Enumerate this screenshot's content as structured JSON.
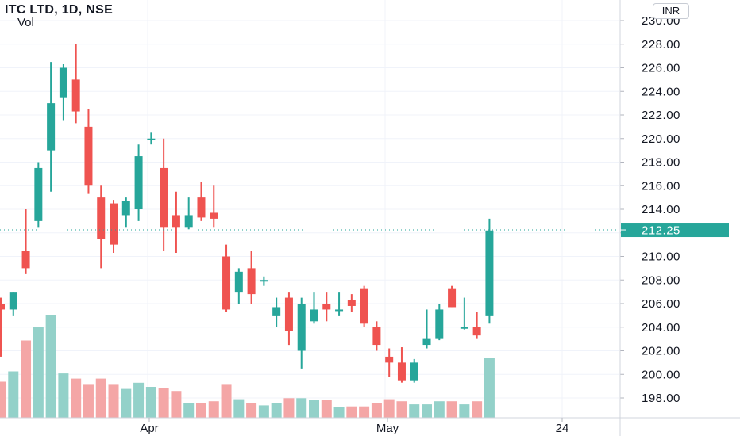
{
  "header": {
    "symbol_line": "ITC LTD, 1D, NSE",
    "volume_label": "Vol",
    "currency": "INR"
  },
  "chart_data": {
    "type": "candlestick",
    "price_axis": {
      "range": [
        196,
        231
      ],
      "ticks": [
        "198.00",
        "200.00",
        "202.00",
        "204.00",
        "206.00",
        "208.00",
        "210.00",
        "212.00",
        "214.00",
        "216.00",
        "218.00",
        "220.00",
        "222.00",
        "224.00",
        "226.00",
        "228.00",
        "230.00"
      ]
    },
    "time_axis": {
      "labels": [
        "Apr",
        "May",
        "24"
      ]
    },
    "last_price": {
      "value": 212.25,
      "label": "212.25",
      "color": "#26a69a"
    },
    "colors": {
      "up": "#26a69a",
      "down": "#ef5350",
      "vol_up": "#93d1c9",
      "vol_down": "#f4a6a6"
    },
    "candles": [
      {
        "o": 206.0,
        "h": 206.5,
        "l": 201.5,
        "c": 205.5,
        "v": 3.5
      },
      {
        "o": 205.5,
        "h": 207.0,
        "l": 205.0,
        "c": 207.0,
        "v": 4.5
      },
      {
        "o": 210.5,
        "h": 214.0,
        "l": 208.5,
        "c": 209.0,
        "v": 7.5
      },
      {
        "o": 213.0,
        "h": 218.0,
        "l": 212.5,
        "c": 217.5,
        "v": 8.8
      },
      {
        "o": 219.0,
        "h": 226.5,
        "l": 215.5,
        "c": 223.0,
        "v": 10.0
      },
      {
        "o": 223.5,
        "h": 226.3,
        "l": 221.5,
        "c": 226.0,
        "v": 4.3
      },
      {
        "o": 225.0,
        "h": 228.0,
        "l": 221.3,
        "c": 222.3,
        "v": 3.8
      },
      {
        "o": 221.0,
        "h": 222.5,
        "l": 215.3,
        "c": 216.0,
        "v": 3.2
      },
      {
        "o": 215.0,
        "h": 216.0,
        "l": 209.0,
        "c": 211.5,
        "v": 3.8
      },
      {
        "o": 214.5,
        "h": 214.8,
        "l": 210.3,
        "c": 211.0,
        "v": 3.2
      },
      {
        "o": 213.5,
        "h": 215.0,
        "l": 212.5,
        "c": 214.7,
        "v": 2.8
      },
      {
        "o": 214.0,
        "h": 219.5,
        "l": 213.0,
        "c": 218.5,
        "v": 3.4
      },
      {
        "o": 220.0,
        "h": 220.5,
        "l": 219.5,
        "c": 220.0,
        "v": 3.0
      },
      {
        "o": 217.5,
        "h": 220.0,
        "l": 210.5,
        "c": 212.5,
        "v": 2.9
      },
      {
        "o": 213.5,
        "h": 215.5,
        "l": 210.3,
        "c": 212.5,
        "v": 2.6
      },
      {
        "o": 212.5,
        "h": 215.0,
        "l": 212.3,
        "c": 213.5,
        "v": 1.4
      },
      {
        "o": 215.0,
        "h": 216.3,
        "l": 213.0,
        "c": 213.3,
        "v": 1.4
      },
      {
        "o": 213.7,
        "h": 216.0,
        "l": 212.5,
        "c": 213.2,
        "v": 1.6
      },
      {
        "o": 210.0,
        "h": 211.0,
        "l": 205.3,
        "c": 205.5,
        "v": 3.2
      },
      {
        "o": 207.0,
        "h": 209.0,
        "l": 206.0,
        "c": 208.7,
        "v": 1.8
      },
      {
        "o": 209.0,
        "h": 210.5,
        "l": 206.0,
        "c": 206.8,
        "v": 1.4
      },
      {
        "o": 208.0,
        "h": 208.3,
        "l": 207.5,
        "c": 208.0,
        "v": 1.2
      },
      {
        "o": 205.0,
        "h": 206.5,
        "l": 204.0,
        "c": 205.7,
        "v": 1.4
      },
      {
        "o": 206.5,
        "h": 207.0,
        "l": 202.5,
        "c": 203.7,
        "v": 1.9
      },
      {
        "o": 202.0,
        "h": 206.5,
        "l": 200.5,
        "c": 206.0,
        "v": 1.9
      },
      {
        "o": 204.5,
        "h": 207.0,
        "l": 204.3,
        "c": 205.5,
        "v": 1.7
      },
      {
        "o": 206.0,
        "h": 207.0,
        "l": 204.5,
        "c": 205.5,
        "v": 1.7
      },
      {
        "o": 205.5,
        "h": 207.0,
        "l": 205.0,
        "c": 205.5,
        "v": 1.0
      },
      {
        "o": 206.3,
        "h": 206.8,
        "l": 205.3,
        "c": 205.8,
        "v": 1.1
      },
      {
        "o": 207.3,
        "h": 207.5,
        "l": 204.0,
        "c": 204.3,
        "v": 1.1
      },
      {
        "o": 204.0,
        "h": 204.5,
        "l": 202.0,
        "c": 202.5,
        "v": 1.4
      },
      {
        "o": 201.5,
        "h": 202.2,
        "l": 199.8,
        "c": 201.0,
        "v": 1.8
      },
      {
        "o": 201.0,
        "h": 202.3,
        "l": 199.3,
        "c": 199.5,
        "v": 1.6
      },
      {
        "o": 199.5,
        "h": 201.3,
        "l": 199.3,
        "c": 201.0,
        "v": 1.3
      },
      {
        "o": 202.5,
        "h": 205.5,
        "l": 202.2,
        "c": 203.0,
        "v": 1.3
      },
      {
        "o": 203.0,
        "h": 206.0,
        "l": 202.9,
        "c": 205.5,
        "v": 1.6
      },
      {
        "o": 207.3,
        "h": 207.5,
        "l": 205.7,
        "c": 205.7,
        "v": 1.6
      },
      {
        "o": 204.0,
        "h": 206.5,
        "l": 203.8,
        "c": 204.0,
        "v": 1.3
      },
      {
        "o": 204.0,
        "h": 205.3,
        "l": 203.0,
        "c": 203.3,
        "v": 1.6
      },
      {
        "o": 205.0,
        "h": 213.2,
        "l": 204.3,
        "c": 212.2,
        "v": 5.8
      }
    ]
  }
}
